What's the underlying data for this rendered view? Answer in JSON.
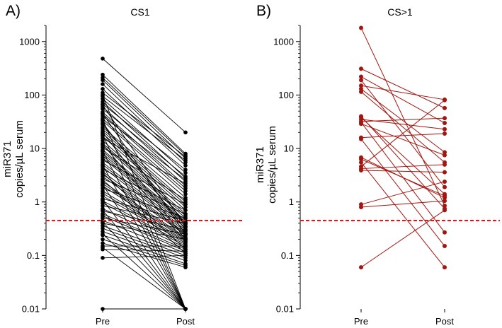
{
  "chart_data": [
    {
      "type": "line",
      "panel_label": "A)",
      "title": "CS1",
      "ylabel_line1": "miR371",
      "ylabel_line2": "copies/µL serum",
      "yscale": "log",
      "ylim": [
        0.01,
        2000
      ],
      "yticks": [
        {
          "value": 1000,
          "label": "1000"
        },
        {
          "value": 100,
          "label": "100"
        },
        {
          "value": 10,
          "label": "10"
        },
        {
          "value": 1,
          "label": "1"
        },
        {
          "value": 0.1,
          "label": "0.1"
        },
        {
          "value": 0.01,
          "label": "0.01"
        }
      ],
      "categories": [
        "Pre",
        "Post"
      ],
      "threshold": 0.45,
      "threshold_color": "#e0191b",
      "series_color": "#000000",
      "pairs": [
        [
          480,
          20
        ],
        [
          240,
          8
        ],
        [
          210,
          7.5
        ],
        [
          190,
          6.5
        ],
        [
          160,
          5.5
        ],
        [
          130,
          4.8
        ],
        [
          110,
          7
        ],
        [
          95,
          6
        ],
        [
          85,
          3.5
        ],
        [
          75,
          2.8
        ],
        [
          68,
          4
        ],
        [
          60,
          2.4
        ],
        [
          55,
          3
        ],
        [
          48,
          2
        ],
        [
          44,
          1.8
        ],
        [
          40,
          2.6
        ],
        [
          36,
          1.6
        ],
        [
          33,
          1.4
        ],
        [
          30,
          0.3
        ],
        [
          28,
          0.4
        ],
        [
          25,
          1.2
        ],
        [
          23,
          1
        ],
        [
          21,
          0.9
        ],
        [
          19,
          0.8
        ],
        [
          17,
          0.7
        ],
        [
          15.5,
          2.2
        ],
        [
          14,
          0.6
        ],
        [
          12.5,
          0.55
        ],
        [
          11.5,
          0.5
        ],
        [
          10.5,
          1.1
        ],
        [
          9.5,
          0.45
        ],
        [
          8.8,
          0.42
        ],
        [
          8,
          0.4
        ],
        [
          7.3,
          0.38
        ],
        [
          6.7,
          0.35
        ],
        [
          6.1,
          0.9
        ],
        [
          5.5,
          0.33
        ],
        [
          5,
          0.3
        ],
        [
          4.5,
          0.28
        ],
        [
          4.1,
          0.7
        ],
        [
          3.7,
          0.26
        ],
        [
          3.3,
          0.25
        ],
        [
          3,
          0.24
        ],
        [
          2.7,
          0.6
        ],
        [
          2.4,
          0.22
        ],
        [
          2.2,
          0.21
        ],
        [
          2,
          0.2
        ],
        [
          1.8,
          0.5
        ],
        [
          1.6,
          0.19
        ],
        [
          1.45,
          0.18
        ],
        [
          1.3,
          0.17
        ],
        [
          1.15,
          0.45
        ],
        [
          1.05,
          0.16
        ],
        [
          0.95,
          0.15
        ],
        [
          0.85,
          0.4
        ],
        [
          0.75,
          0.14
        ],
        [
          0.68,
          0.3
        ],
        [
          0.6,
          0.13
        ],
        [
          0.55,
          0.12
        ],
        [
          0.5,
          0.25
        ],
        [
          0.45,
          0.11
        ],
        [
          0.4,
          0.2
        ],
        [
          0.36,
          0.1
        ],
        [
          0.32,
          0.09
        ],
        [
          0.28,
          0.08
        ],
        [
          0.24,
          0.07
        ],
        [
          0.2,
          0.065
        ],
        [
          0.17,
          0.06
        ],
        [
          0.15,
          0.15
        ],
        [
          0.13,
          0.12
        ],
        [
          0.09,
          0.1
        ],
        [
          65,
          0.35
        ],
        [
          45,
          0.25
        ],
        [
          20,
          0.2
        ],
        [
          12,
          0.18
        ],
        [
          3.5,
          0.13
        ],
        [
          2.6,
          0.11
        ],
        [
          100,
          0.01
        ],
        [
          35,
          0.01
        ],
        [
          18,
          0.01
        ],
        [
          9,
          0.01
        ],
        [
          4.8,
          0.01
        ],
        [
          2.1,
          0.01
        ],
        [
          1.1,
          0.01
        ],
        [
          0.7,
          0.01
        ],
        [
          0.42,
          0.01
        ],
        [
          0.25,
          0.01
        ],
        [
          0.14,
          0.01
        ],
        [
          0.01,
          0.01
        ]
      ]
    },
    {
      "type": "line",
      "panel_label": "B)",
      "title": "CS>1",
      "ylabel_line1": "miR371",
      "ylabel_line2": "copies/µL serum",
      "yscale": "log",
      "ylim": [
        0.01,
        2000
      ],
      "yticks": [
        {
          "value": 1000,
          "label": "1000"
        },
        {
          "value": 100,
          "label": "100"
        },
        {
          "value": 10,
          "label": "10"
        },
        {
          "value": 1,
          "label": "1"
        },
        {
          "value": 0.1,
          "label": "0.1"
        },
        {
          "value": 0.01,
          "label": "0.01"
        }
      ],
      "categories": [
        "Pre",
        "Post"
      ],
      "threshold": 0.45,
      "threshold_color": "#e0191b",
      "series_color": "#a5150f",
      "pairs": [
        [
          1800,
          0.85
        ],
        [
          310,
          57
        ],
        [
          220,
          30
        ],
        [
          190,
          1.9
        ],
        [
          150,
          82
        ],
        [
          130,
          8.5
        ],
        [
          115,
          5.5
        ],
        [
          40,
          0.75
        ],
        [
          38,
          1.4
        ],
        [
          35,
          23
        ],
        [
          32,
          37
        ],
        [
          31,
          0.27
        ],
        [
          29,
          7.5
        ],
        [
          16,
          19
        ],
        [
          15,
          0.15
        ],
        [
          6.8,
          1.2
        ],
        [
          6.3,
          1.3
        ],
        [
          5.5,
          0.06
        ],
        [
          4.6,
          80
        ],
        [
          4.2,
          5
        ],
        [
          3.9,
          3.6
        ],
        [
          0.9,
          2.4
        ],
        [
          0.8,
          1.05
        ],
        [
          0.06,
          0.7
        ]
      ]
    }
  ]
}
